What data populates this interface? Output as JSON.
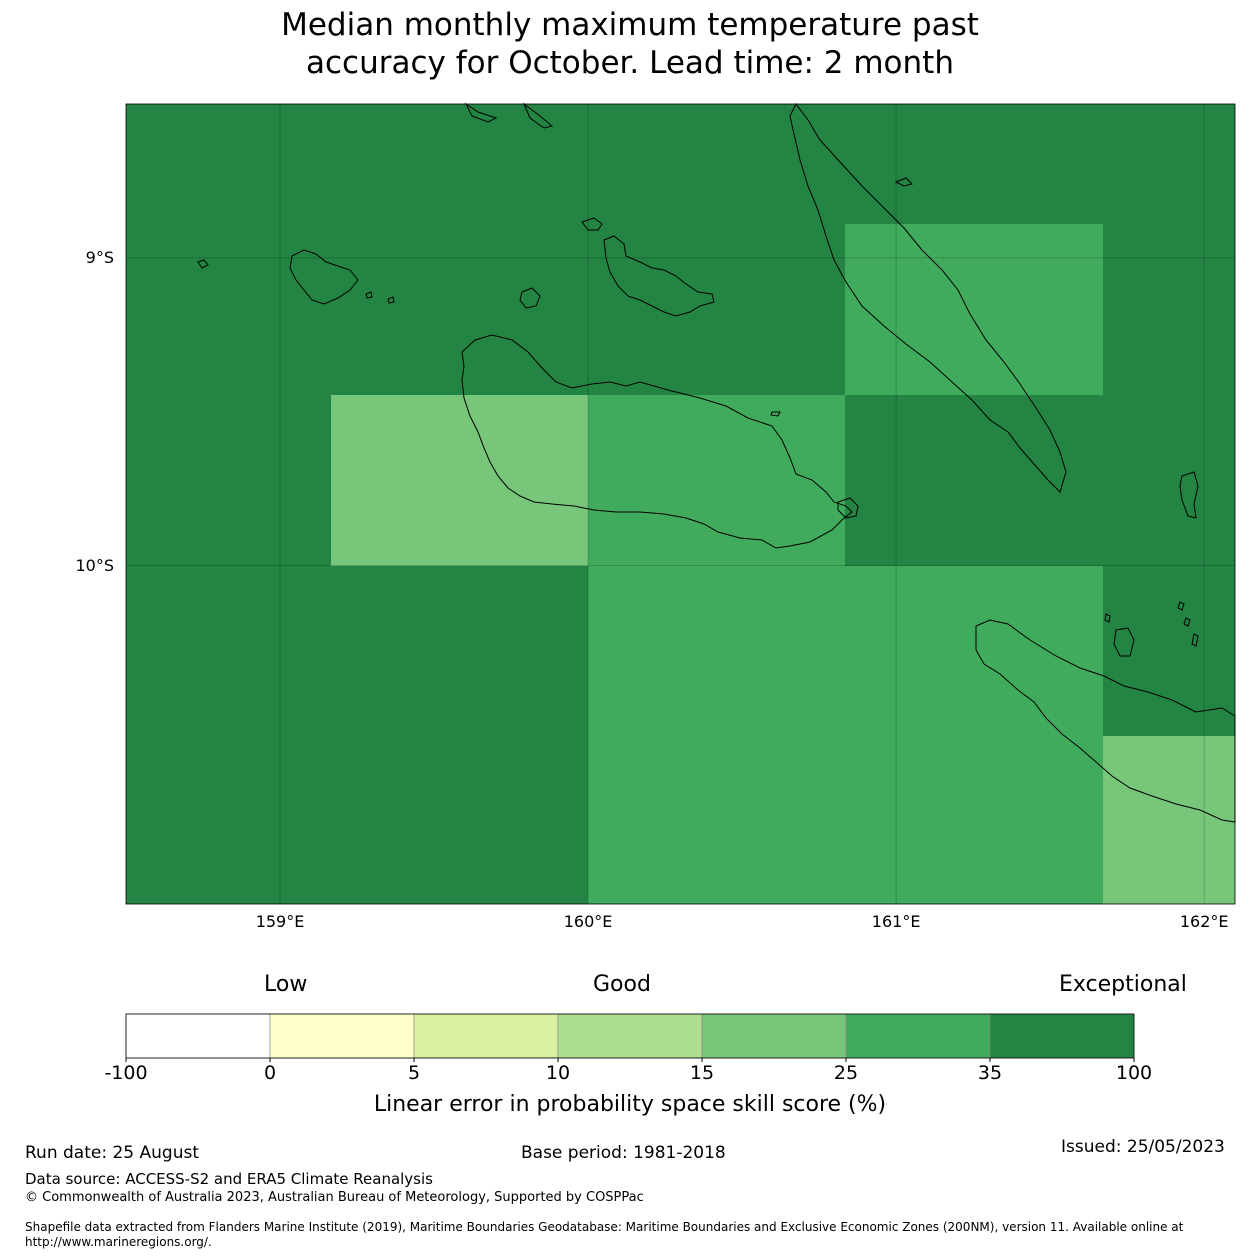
{
  "title_line1": "Median monthly maximum temperature past",
  "title_line2": "accuracy for October. Lead time: 2 month",
  "map": {
    "extent": {
      "lon_min": 158.5,
      "lon_max": 162.1,
      "lat_top": -8.5,
      "lat_bottom": -11.1
    },
    "lat_ticks": [
      {
        "value": -9,
        "label": "9°S"
      },
      {
        "value": -10,
        "label": "10°S"
      }
    ],
    "lon_ticks": [
      {
        "value": 159,
        "label": "159°E"
      },
      {
        "value": 160,
        "label": "160°E"
      },
      {
        "value": 161,
        "label": "161°E"
      },
      {
        "value": 162,
        "label": "162°E"
      }
    ],
    "cell_rows": [
      {
        "lat_top": -8.5,
        "lat_bottom": -8.89,
        "cells": [
          {
            "lon_start": 158.5,
            "lon_end": 162.1,
            "category": "35-100"
          }
        ]
      },
      {
        "lat_top": -8.89,
        "lat_bottom": -9.445,
        "cells": [
          {
            "lon_start": 158.5,
            "lon_end": 160.835,
            "category": "35-100"
          },
          {
            "lon_start": 160.835,
            "lon_end": 161.67,
            "category": "25-35"
          },
          {
            "lon_start": 161.67,
            "lon_end": 162.1,
            "category": "35-100"
          }
        ]
      },
      {
        "lat_top": -9.445,
        "lat_bottom": -10.0,
        "cells": [
          {
            "lon_start": 158.5,
            "lon_end": 159.165,
            "category": "35-100"
          },
          {
            "lon_start": 159.165,
            "lon_end": 160.0,
            "category": "15-25"
          },
          {
            "lon_start": 160.0,
            "lon_end": 160.835,
            "category": "25-35"
          },
          {
            "lon_start": 160.835,
            "lon_end": 162.1,
            "category": "35-100"
          }
        ]
      },
      {
        "lat_top": -10.0,
        "lat_bottom": -10.555,
        "cells": [
          {
            "lon_start": 158.5,
            "lon_end": 160.0,
            "category": "35-100"
          },
          {
            "lon_start": 160.0,
            "lon_end": 161.67,
            "category": "25-35"
          },
          {
            "lon_start": 161.67,
            "lon_end": 162.1,
            "category": "35-100"
          }
        ]
      },
      {
        "lat_top": -10.555,
        "lat_bottom": -11.1,
        "cells": [
          {
            "lon_start": 158.5,
            "lon_end": 160.0,
            "category": "35-100"
          },
          {
            "lon_start": 160.0,
            "lon_end": 161.67,
            "category": "25-35"
          },
          {
            "lon_start": 161.67,
            "lon_end": 162.1,
            "category": "15-25"
          }
        ]
      }
    ]
  },
  "colorbar": {
    "categories": [
      "Low",
      "Good",
      "Exceptional"
    ],
    "bins": [
      {
        "from": -100,
        "to": 0,
        "color": "#ffffff"
      },
      {
        "from": 0,
        "to": 5,
        "color": "#ffffcc"
      },
      {
        "from": 5,
        "to": 10,
        "color": "#d9f0a3"
      },
      {
        "from": 10,
        "to": 15,
        "color": "#addd8e"
      },
      {
        "from": 15,
        "to": 25,
        "color": "#78c679"
      },
      {
        "from": 25,
        "to": 35,
        "color": "#41ab5d"
      },
      {
        "from": 35,
        "to": 100,
        "color": "#238443"
      }
    ],
    "tick_labels": [
      "-100",
      "0",
      "5",
      "10",
      "15",
      "25",
      "35",
      "100"
    ],
    "title": "Linear error in probability space skill score (%)"
  },
  "category_colors": {
    "15-25": "#78c679",
    "25-35": "#41ab5d",
    "35-100": "#238443"
  },
  "footer": {
    "run_date": "Run date: 25 August",
    "base_period": "Base period: 1981-2018",
    "issued": "Issued: 25/05/2023",
    "data_source": "Data source: ACCESS-S2 and ERA5 Climate Reanalysis",
    "copyright": "© Commonwealth of Australia 2023, Australian Bureau of Meteorology, Supported by COSPPac",
    "shapefile_line1": "Shapefile data extracted from Flanders Marine Institute (2019), Maritime Boundaries Geodatabase: Maritime Boundaries and Exclusive Economic Zones (200NM), version 11. Available online at",
    "shapefile_line2": "http://www.marineregions.org/."
  }
}
